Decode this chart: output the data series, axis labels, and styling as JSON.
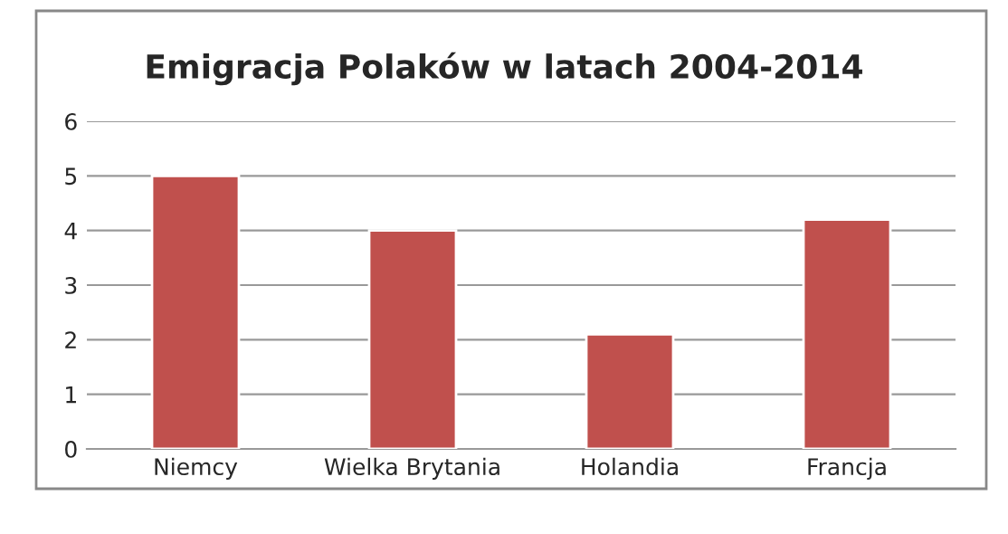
{
  "chart_data": {
    "type": "bar",
    "title": "Emigracja Polaków w latach 2004-2014",
    "categories": [
      "Niemcy",
      "Wielka Brytania",
      "Holandia",
      "Francja"
    ],
    "values": [
      5,
      4,
      2.1,
      4.2
    ],
    "color": "#c0504d",
    "ylim": [
      0,
      6
    ],
    "yticks": [
      0,
      1,
      2,
      3,
      4,
      5,
      6
    ],
    "grid": "y"
  }
}
